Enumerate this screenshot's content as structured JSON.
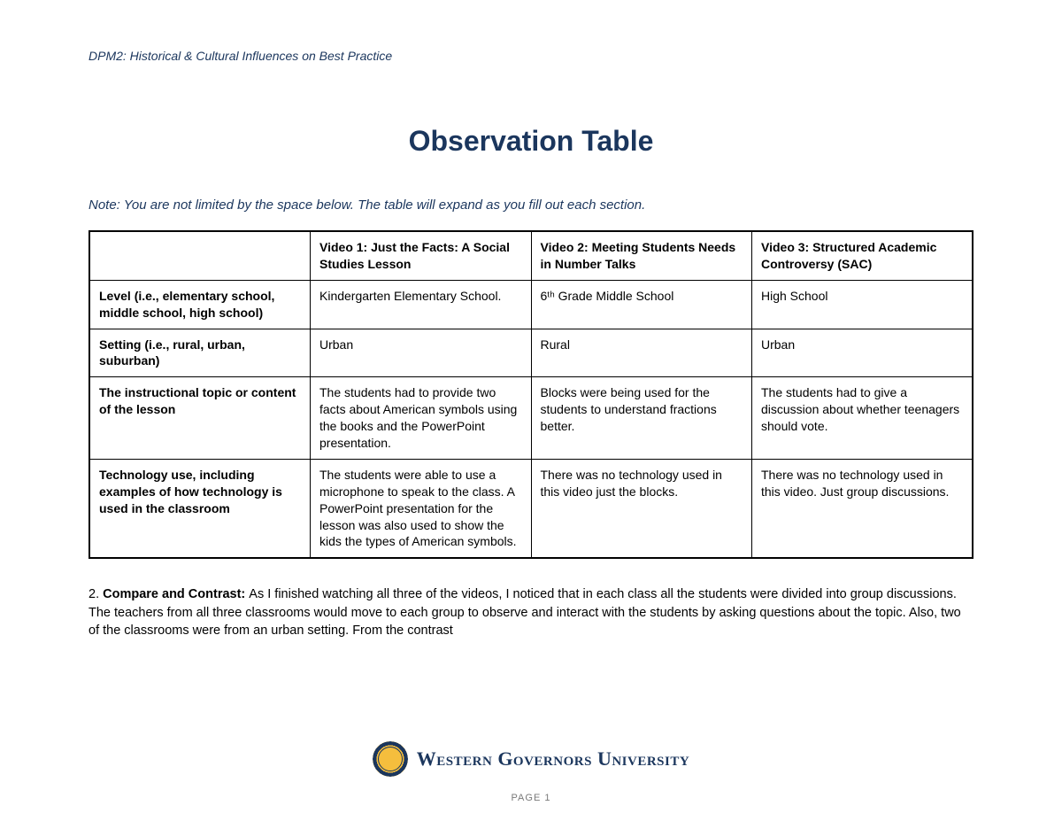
{
  "header": "DPM2: Historical & Cultural Influences on Best Practice",
  "title": "Observation Table",
  "note": "Note: You are not limited by the space below. The table will expand as you fill out each section.",
  "table": {
    "columns": [
      "",
      "Video 1: Just the Facts: A Social Studies Lesson",
      "Video 2: Meeting Students Needs in Number Talks",
      "Video 3: Structured Academic Controversy (SAC)"
    ],
    "rows": [
      {
        "label": "Level (i.e., elementary school, middle school, high school)",
        "v1": "Kindergarten Elementary School.",
        "v2": "6ᵗʰ Grade Middle School",
        "v3": "High School"
      },
      {
        "label": "Setting (i.e., rural, urban, suburban)",
        "v1": "Urban",
        "v2": "Rural",
        "v3": "Urban"
      },
      {
        "label": "The instructional topic or content of the lesson",
        "v1": "The students had to provide two facts about American symbols using the books and the PowerPoint presentation.",
        "v2": "Blocks were being used for the students to understand fractions better.",
        "v3": "The students had to give a discussion about whether teenagers should vote."
      },
      {
        "label": "Technology use, including examples of how technology is used in the classroom",
        "v1": "The students were able to use a microphone to speak to the class. A PowerPoint presentation for the lesson was also used to show the kids the types of American symbols.",
        "v2": "There was no technology used in this video just the blocks.",
        "v3": "There was no technology used in this video. Just group discussions."
      }
    ]
  },
  "compare": {
    "number": "2. ",
    "label": "Compare and Contrast: ",
    "text": "As I finished watching all three of the videos, I noticed that in each class all the students were divided into group discussions. The teachers from all three classrooms would move to each group to observe and interact with the students by asking questions about the topic. Also, two of the classrooms were from an urban setting. From the contrast"
  },
  "footer": {
    "org": "Western Governors University",
    "page": "PAGE 1"
  },
  "colors": {
    "brand_navy": "#1b365d",
    "brand_gold": "#f5be3d",
    "text_black": "#000000",
    "page_num_gray": "#7a7a7a",
    "background": "#ffffff"
  }
}
